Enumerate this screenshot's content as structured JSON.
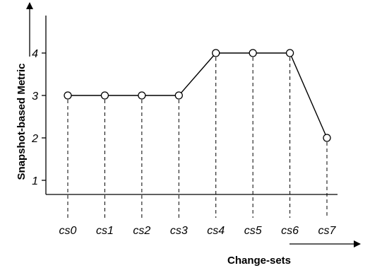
{
  "chart_data": {
    "type": "line",
    "xlabel": "Change-sets",
    "ylabel": "Snapshot-based Metric",
    "categories": [
      "cs0",
      "cs1",
      "cs2",
      "cs3",
      "cs4",
      "cs5",
      "cs6",
      "cs7"
    ],
    "y_ticks": [
      "1",
      "2",
      "3",
      "4"
    ],
    "series": [
      {
        "values": [
          3,
          3,
          3,
          3,
          4,
          4,
          4,
          2
        ]
      }
    ],
    "ylim": [
      0.4,
      5.0
    ],
    "grid": false,
    "legend": "none",
    "marker": "open-circle",
    "drop_lines": "dashed",
    "colors": {
      "line": "#000000",
      "marker_fill": "#ffffff"
    }
  }
}
